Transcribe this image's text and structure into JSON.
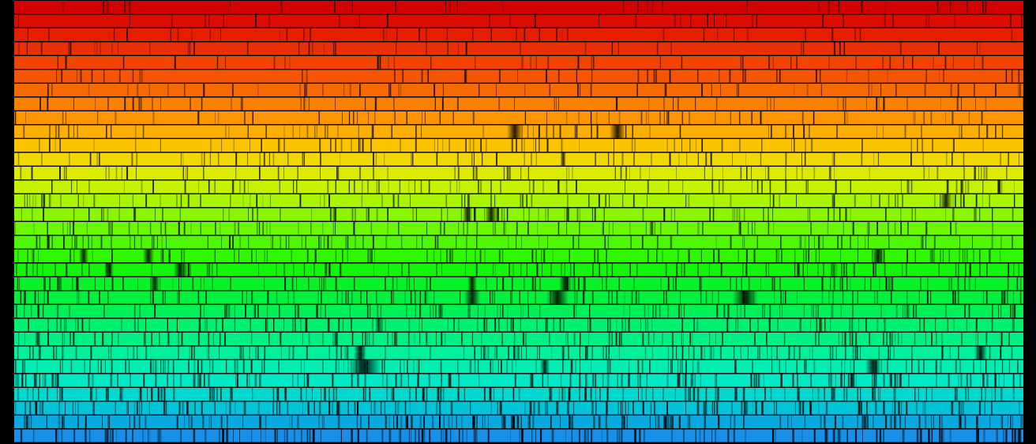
{
  "image": {
    "subject": "solar-spectrum",
    "background_color": "#000000",
    "band_colors_top_to_bottom": [
      "#d40000",
      "#dd0c00",
      "#e51e00",
      "#ea3000",
      "#f04400",
      "#f45600",
      "#f76a00",
      "#fa8000",
      "#fc9600",
      "#fdae00",
      "#fcc400",
      "#f0d800",
      "#dceb00",
      "#c6f200",
      "#a8f500",
      "#8af700",
      "#6cf800",
      "#4ef800",
      "#30f800",
      "#14f50c",
      "#08f228",
      "#04f040",
      "#00f058",
      "#00f070",
      "#00f088",
      "#00f09e",
      "#00eeb2",
      "#00e8c4",
      "#00d8d0",
      "#00c4d8",
      "#08a8e0",
      "#1890ea"
    ],
    "absorption_line_color": "#000000"
  }
}
